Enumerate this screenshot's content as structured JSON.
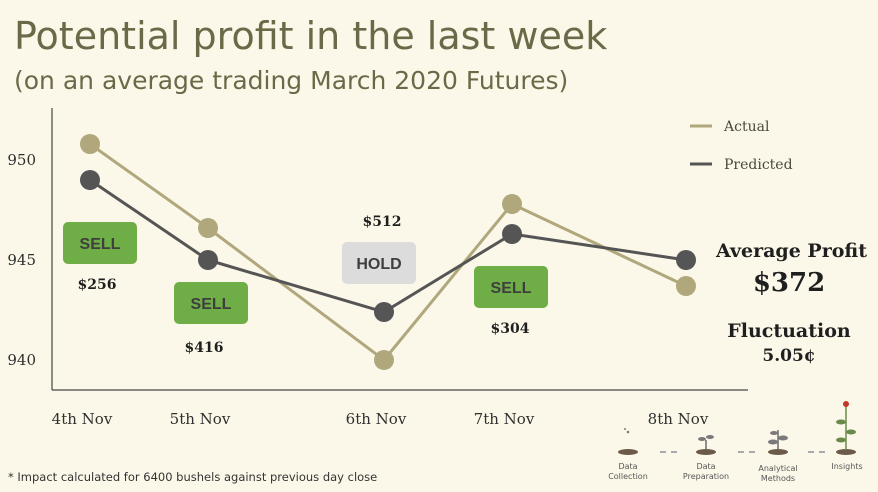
{
  "title": "Potential profit in the last week",
  "subtitle": "(on an average trading March 2020 Futures)",
  "chart_data": {
    "type": "line",
    "categories": [
      "4th Nov",
      "5th Nov",
      "6th Nov",
      "7th Nov",
      "8th Nov"
    ],
    "series": [
      {
        "name": "Actual",
        "values": [
          950.8,
          946.6,
          940.0,
          947.8,
          943.7
        ],
        "color": "#b0a87c"
      },
      {
        "name": "Predicted",
        "values": [
          949.0,
          945.0,
          942.4,
          946.3,
          945.0
        ],
        "color": "#555555"
      }
    ],
    "yticks": [
      940,
      945,
      950
    ],
    "ylim": [
      939,
      953
    ],
    "grid": false,
    "legend_position": "top-right",
    "annotations": [
      {
        "category": "4th Nov",
        "action": "SELL",
        "profit": "$256"
      },
      {
        "category": "5th Nov",
        "action": "SELL",
        "profit": "$416"
      },
      {
        "category": "6th Nov",
        "action": "HOLD",
        "profit": "$512"
      },
      {
        "category": "7th Nov",
        "action": "SELL",
        "profit": "$304"
      }
    ]
  },
  "summary": {
    "avg_label": "Average Profit",
    "avg_value": "$372",
    "fluct_label": "Fluctuation",
    "fluct_value": "5.05¢"
  },
  "footnote": "* Impact calculated for 6400 bushels against previous day close",
  "pipeline": [
    {
      "label": "Data Collection",
      "icon": "seed-icon"
    },
    {
      "label": "Data Preparation",
      "icon": "sprout-icon"
    },
    {
      "label": "Analytical Methods",
      "icon": "sapling-icon"
    },
    {
      "label": "Insights",
      "icon": "flowering-plant-icon"
    }
  ],
  "colors": {
    "sell": "#6fae46",
    "hold": "#dcdcdc",
    "background": "#fcf8e9",
    "title": "#6b6a48"
  }
}
